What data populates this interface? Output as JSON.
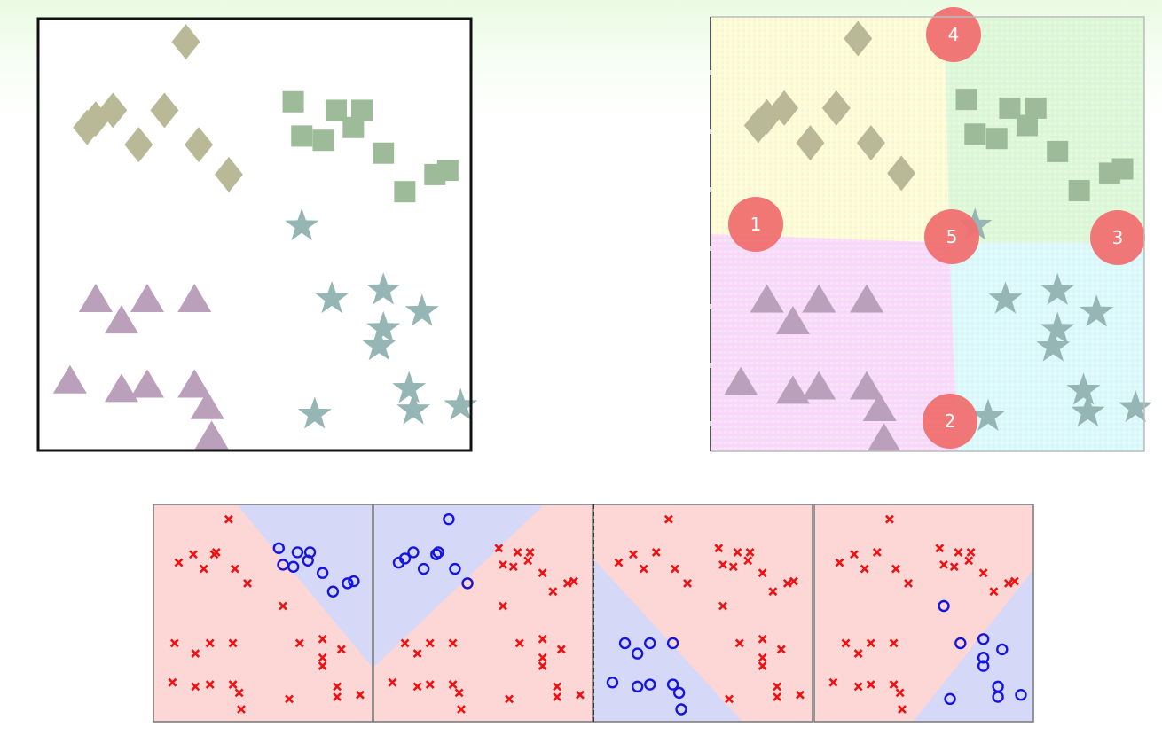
{
  "colors": {
    "diamond": "#b9b997",
    "square": "#9dbb98",
    "star": "#95b6b4",
    "triangle": "#baa0bb",
    "region_yellow": "#fefed0",
    "region_green": "#d9f9d3",
    "region_cyan": "#d7fbfd",
    "region_pink": "#f9d7fb",
    "badge": "#f07070",
    "panel_red": "#fdd6d6",
    "panel_blue": "#d6d8f8",
    "x_marker": "#ee1111",
    "o_marker": "#1515dd"
  },
  "badges": [
    {
      "label": "4"
    },
    {
      "label": "1"
    },
    {
      "label": "5"
    },
    {
      "label": "3"
    },
    {
      "label": "2"
    }
  ],
  "clusters": {
    "diamonds": [
      [
        0.34,
        0.05
      ],
      [
        0.11,
        0.25
      ],
      [
        0.13,
        0.23
      ],
      [
        0.17,
        0.21
      ],
      [
        0.29,
        0.21
      ],
      [
        0.23,
        0.29
      ],
      [
        0.37,
        0.29
      ],
      [
        0.44,
        0.36
      ]
    ],
    "squares": [
      [
        0.59,
        0.19
      ],
      [
        0.69,
        0.21
      ],
      [
        0.75,
        0.21
      ],
      [
        0.61,
        0.27
      ],
      [
        0.66,
        0.28
      ],
      [
        0.73,
        0.25
      ],
      [
        0.8,
        0.31
      ],
      [
        0.85,
        0.4
      ],
      [
        0.92,
        0.36
      ],
      [
        0.95,
        0.35
      ]
    ],
    "stars": [
      [
        0.61,
        0.48
      ],
      [
        0.68,
        0.65
      ],
      [
        0.8,
        0.63
      ],
      [
        0.89,
        0.68
      ],
      [
        0.8,
        0.72
      ],
      [
        0.79,
        0.76
      ],
      [
        0.86,
        0.86
      ],
      [
        0.64,
        0.92
      ],
      [
        0.87,
        0.91
      ],
      [
        0.98,
        0.9
      ]
    ],
    "triangles": [
      [
        0.13,
        0.65
      ],
      [
        0.19,
        0.7
      ],
      [
        0.25,
        0.65
      ],
      [
        0.36,
        0.65
      ],
      [
        0.07,
        0.84
      ],
      [
        0.19,
        0.86
      ],
      [
        0.25,
        0.85
      ],
      [
        0.36,
        0.85
      ],
      [
        0.39,
        0.9
      ],
      [
        0.4,
        0.97
      ]
    ]
  },
  "panels": [
    {
      "x": [
        [
          0.34,
          0.05
        ],
        [
          0.1,
          0.26
        ],
        [
          0.17,
          0.22
        ],
        [
          0.27,
          0.22
        ],
        [
          0.28,
          0.21
        ],
        [
          0.22,
          0.29
        ],
        [
          0.37,
          0.29
        ],
        [
          0.43,
          0.36
        ],
        [
          0.6,
          0.47
        ],
        [
          0.08,
          0.65
        ],
        [
          0.18,
          0.7
        ],
        [
          0.25,
          0.65
        ],
        [
          0.36,
          0.65
        ],
        [
          0.07,
          0.84
        ],
        [
          0.18,
          0.86
        ],
        [
          0.25,
          0.85
        ],
        [
          0.36,
          0.85
        ],
        [
          0.39,
          0.89
        ],
        [
          0.4,
          0.97
        ],
        [
          0.68,
          0.65
        ],
        [
          0.79,
          0.63
        ],
        [
          0.88,
          0.68
        ],
        [
          0.79,
          0.72
        ],
        [
          0.79,
          0.76
        ],
        [
          0.86,
          0.86
        ],
        [
          0.63,
          0.92
        ],
        [
          0.86,
          0.91
        ],
        [
          0.97,
          0.9
        ]
      ],
      "o": [
        [
          0.58,
          0.19
        ],
        [
          0.67,
          0.21
        ],
        [
          0.73,
          0.21
        ],
        [
          0.6,
          0.27
        ],
        [
          0.65,
          0.28
        ],
        [
          0.72,
          0.25
        ],
        [
          0.79,
          0.31
        ],
        [
          0.84,
          0.4
        ],
        [
          0.91,
          0.36
        ],
        [
          0.94,
          0.35
        ]
      ],
      "blue_region": [
        [
          0.38,
          0
        ],
        [
          1,
          0
        ],
        [
          1,
          0.75
        ]
      ]
    },
    {
      "x": [
        [
          0.58,
          0.19
        ],
        [
          0.67,
          0.21
        ],
        [
          0.73,
          0.21
        ],
        [
          0.6,
          0.27
        ],
        [
          0.65,
          0.28
        ],
        [
          0.72,
          0.25
        ],
        [
          0.79,
          0.31
        ],
        [
          0.84,
          0.4
        ],
        [
          0.91,
          0.36
        ],
        [
          0.94,
          0.35
        ],
        [
          0.6,
          0.47
        ],
        [
          0.13,
          0.65
        ],
        [
          0.19,
          0.7
        ],
        [
          0.25,
          0.65
        ],
        [
          0.36,
          0.65
        ],
        [
          0.07,
          0.84
        ],
        [
          0.19,
          0.86
        ],
        [
          0.25,
          0.85
        ],
        [
          0.36,
          0.85
        ],
        [
          0.39,
          0.89
        ],
        [
          0.4,
          0.97
        ],
        [
          0.68,
          0.65
        ],
        [
          0.79,
          0.63
        ],
        [
          0.88,
          0.68
        ],
        [
          0.79,
          0.72
        ],
        [
          0.79,
          0.76
        ],
        [
          0.86,
          0.86
        ],
        [
          0.63,
          0.92
        ],
        [
          0.86,
          0.91
        ],
        [
          0.97,
          0.9
        ]
      ],
      "o": [
        [
          0.34,
          0.05
        ],
        [
          0.1,
          0.26
        ],
        [
          0.13,
          0.24
        ],
        [
          0.17,
          0.21
        ],
        [
          0.28,
          0.22
        ],
        [
          0.29,
          0.21
        ],
        [
          0.22,
          0.29
        ],
        [
          0.37,
          0.29
        ],
        [
          0.43,
          0.36
        ]
      ],
      "blue_region": [
        [
          0,
          0
        ],
        [
          0.78,
          0
        ],
        [
          0,
          0.75
        ]
      ]
    },
    {
      "x": [
        [
          0.34,
          0.05
        ],
        [
          0.1,
          0.26
        ],
        [
          0.17,
          0.22
        ],
        [
          0.28,
          0.21
        ],
        [
          0.22,
          0.29
        ],
        [
          0.37,
          0.29
        ],
        [
          0.43,
          0.36
        ],
        [
          0.58,
          0.19
        ],
        [
          0.67,
          0.21
        ],
        [
          0.73,
          0.21
        ],
        [
          0.6,
          0.27
        ],
        [
          0.65,
          0.28
        ],
        [
          0.72,
          0.25
        ],
        [
          0.79,
          0.31
        ],
        [
          0.84,
          0.4
        ],
        [
          0.91,
          0.36
        ],
        [
          0.94,
          0.35
        ],
        [
          0.6,
          0.47
        ],
        [
          0.68,
          0.65
        ],
        [
          0.79,
          0.63
        ],
        [
          0.88,
          0.68
        ],
        [
          0.79,
          0.72
        ],
        [
          0.79,
          0.76
        ],
        [
          0.86,
          0.86
        ],
        [
          0.63,
          0.92
        ],
        [
          0.86,
          0.91
        ],
        [
          0.97,
          0.9
        ]
      ],
      "o": [
        [
          0.13,
          0.65
        ],
        [
          0.19,
          0.7
        ],
        [
          0.25,
          0.65
        ],
        [
          0.36,
          0.65
        ],
        [
          0.07,
          0.84
        ],
        [
          0.19,
          0.86
        ],
        [
          0.25,
          0.85
        ],
        [
          0.36,
          0.85
        ],
        [
          0.39,
          0.89
        ],
        [
          0.4,
          0.97
        ]
      ],
      "blue_region": [
        [
          0,
          0.25
        ],
        [
          0,
          1
        ],
        [
          0.68,
          1
        ]
      ]
    },
    {
      "x": [
        [
          0.34,
          0.05
        ],
        [
          0.1,
          0.26
        ],
        [
          0.17,
          0.22
        ],
        [
          0.28,
          0.21
        ],
        [
          0.22,
          0.29
        ],
        [
          0.37,
          0.29
        ],
        [
          0.43,
          0.36
        ],
        [
          0.58,
          0.19
        ],
        [
          0.67,
          0.21
        ],
        [
          0.73,
          0.21
        ],
        [
          0.6,
          0.27
        ],
        [
          0.65,
          0.28
        ],
        [
          0.72,
          0.25
        ],
        [
          0.79,
          0.31
        ],
        [
          0.84,
          0.4
        ],
        [
          0.91,
          0.36
        ],
        [
          0.94,
          0.35
        ],
        [
          0.13,
          0.65
        ],
        [
          0.19,
          0.7
        ],
        [
          0.25,
          0.65
        ],
        [
          0.36,
          0.65
        ],
        [
          0.07,
          0.84
        ],
        [
          0.19,
          0.86
        ],
        [
          0.25,
          0.85
        ],
        [
          0.36,
          0.85
        ],
        [
          0.39,
          0.89
        ],
        [
          0.4,
          0.97
        ]
      ],
      "o": [
        [
          0.6,
          0.47
        ],
        [
          0.68,
          0.65
        ],
        [
          0.79,
          0.63
        ],
        [
          0.88,
          0.68
        ],
        [
          0.79,
          0.72
        ],
        [
          0.79,
          0.76
        ],
        [
          0.86,
          0.86
        ],
        [
          0.63,
          0.92
        ],
        [
          0.86,
          0.91
        ],
        [
          0.97,
          0.9
        ]
      ],
      "blue_region": [
        [
          0.45,
          1
        ],
        [
          1,
          1
        ],
        [
          1,
          0.3
        ]
      ]
    }
  ]
}
